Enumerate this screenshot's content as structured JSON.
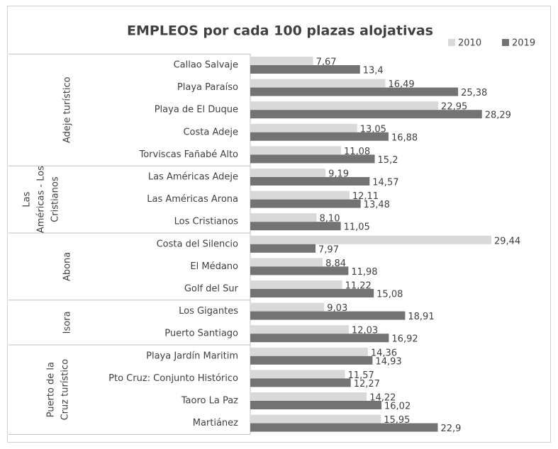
{
  "chart_data": {
    "type": "bar",
    "orientation": "horizontal",
    "title": "EMPLEOS por cada 100 plazas alojativas",
    "categories": [
      "Callao Salvaje",
      "Playa Paraíso",
      "Playa de El Duque",
      "Costa Adeje",
      "Torviscas Fañabé Alto",
      "Las Américas Adeje",
      "Las Américas Arona",
      "Los Cristianos",
      "Costa del Silencio",
      "El Médano",
      "Golf del Sur",
      "Los Gigantes",
      "Puerto Santiago",
      "Playa Jardín Maritim",
      "Pto Cruz: Conjunto Histórico",
      "Taoro La Paz",
      "Martiánez"
    ],
    "groups": [
      {
        "label_lines": [
          "Adeje turístico"
        ],
        "size": 5
      },
      {
        "label_lines": [
          "Las",
          "Américas - Los",
          "Cristianos"
        ],
        "size": 3
      },
      {
        "label_lines": [
          "Abona"
        ],
        "size": 3
      },
      {
        "label_lines": [
          "Isora"
        ],
        "size": 2
      },
      {
        "label_lines": [
          "Puerto de la",
          "Cruz turístico"
        ],
        "size": 4
      }
    ],
    "series": [
      {
        "name": "2010",
        "color": "#d9d9d9",
        "values": [
          7.67,
          16.49,
          22.95,
          13.05,
          11.08,
          9.19,
          12.11,
          8.1,
          29.44,
          8.84,
          11.22,
          9.03,
          12.03,
          14.36,
          11.57,
          14.22,
          15.95
        ],
        "value_labels": [
          "7,67",
          "16,49",
          "22,95",
          "13,05",
          "11,08",
          "9,19",
          "12,11",
          "8,10",
          "29,44",
          "8,84",
          "11,22",
          "9,03",
          "12,03",
          "14,36",
          "11,57",
          "14,22",
          "15,95"
        ]
      },
      {
        "name": "2019",
        "color": "#737373",
        "values": [
          13.4,
          25.38,
          28.29,
          16.88,
          15.2,
          14.57,
          13.48,
          11.05,
          7.97,
          11.98,
          15.08,
          18.91,
          16.92,
          14.93,
          12.27,
          16.02,
          22.9
        ],
        "value_labels": [
          "13,4",
          "25,38",
          "28,29",
          "16,88",
          "15,2",
          "14,57",
          "13,48",
          "11,05",
          "7,97",
          "11,98",
          "15,08",
          "18,91",
          "16,92",
          "14,93",
          "12,27",
          "16,02",
          "22,9"
        ]
      }
    ],
    "legend": "top-right"
  }
}
